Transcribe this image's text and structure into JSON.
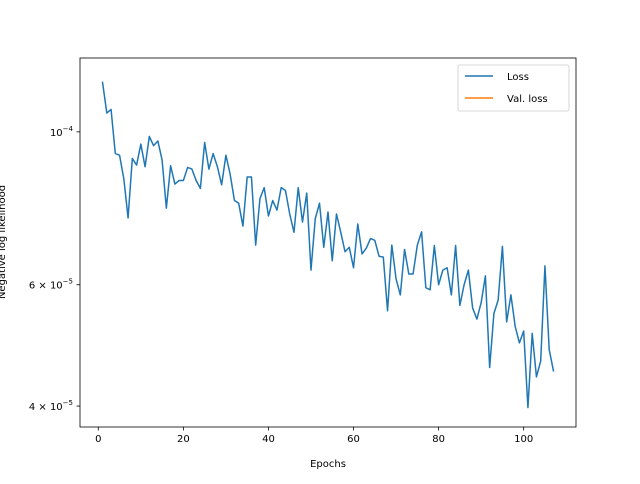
{
  "chart_data": {
    "type": "line",
    "xlabel": "Epochs",
    "ylabel": "Negative log likelihood",
    "yscale": "log",
    "xlim": [
      -4.3,
      112.3
    ],
    "ylim": [
      3.73e-05,
      0.000128
    ],
    "x_ticks": [
      0,
      20,
      40,
      60,
      80,
      100
    ],
    "x_tick_labels": [
      "0",
      "20",
      "40",
      "60",
      "80",
      "100"
    ],
    "y_ticks": [
      4e-05,
      6e-05,
      0.0001
    ],
    "y_tick_labels": [
      {
        "mantissa": "4",
        "times": "×",
        "base": "10",
        "exponent": "−5"
      },
      {
        "mantissa": "6",
        "times": "×",
        "base": "10",
        "exponent": "−5"
      },
      {
        "mantissa": "",
        "times": "",
        "base": "10",
        "exponent": "−4"
      }
    ],
    "legend": {
      "position": "upper right"
    },
    "grid": false,
    "series": [
      {
        "name": "Loss",
        "color": "#1f77b4",
        "x": [
          1,
          2,
          3,
          4,
          5,
          6,
          7,
          8,
          9,
          10,
          11,
          12,
          13,
          14,
          15,
          16,
          17,
          18,
          19,
          20,
          21,
          22,
          23,
          24,
          25,
          26,
          27,
          28,
          29,
          30,
          31,
          32,
          33,
          34,
          35,
          36,
          37,
          38,
          39,
          40,
          41,
          42,
          43,
          44,
          45,
          46,
          47,
          48,
          49,
          50,
          51,
          52,
          53,
          54,
          55,
          56,
          57,
          58,
          59,
          60,
          61,
          62,
          63,
          64,
          65,
          66,
          67,
          68,
          69,
          70,
          71,
          72,
          73,
          74,
          75,
          76,
          77,
          78,
          79,
          80,
          81,
          82,
          83,
          84,
          85,
          86,
          87,
          88,
          89,
          90,
          91,
          92,
          93,
          94,
          95,
          96,
          97,
          98,
          99,
          100,
          101,
          102,
          103,
          104,
          105,
          106,
          107
        ],
        "values": [
          0.000118,
          0.0001065,
          0.0001078,
          9.3e-05,
          9.25e-05,
          8.55e-05,
          7.5e-05,
          9.15e-05,
          8.95e-05,
          9.6e-05,
          8.9e-05,
          9.85e-05,
          9.55e-05,
          9.7e-05,
          9.1e-05,
          7.75e-05,
          8.93e-05,
          8.4e-05,
          8.5e-05,
          8.5e-05,
          8.88e-05,
          8.83e-05,
          8.5e-05,
          8.28e-05,
          9.65e-05,
          8.83e-05,
          9.3e-05,
          8.9e-05,
          8.38e-05,
          9.25e-05,
          8.68e-05,
          7.95e-05,
          7.88e-05,
          7.3e-05,
          8.6e-05,
          8.6e-05,
          6.85e-05,
          8e-05,
          8.3e-05,
          7.55e-05,
          7.95e-05,
          7.7e-05,
          8.3e-05,
          8.22e-05,
          7.6e-05,
          7.15e-05,
          8.3e-05,
          7.4e-05,
          8.15e-05,
          6.3e-05,
          7.48e-05,
          7.88e-05,
          6.8e-05,
          7.65e-05,
          6.5e-05,
          7.6e-05,
          7.15e-05,
          6.7e-05,
          6.8e-05,
          6.35e-05,
          7.35e-05,
          6.65e-05,
          6.78e-05,
          7e-05,
          6.96e-05,
          6.6e-05,
          6.58e-05,
          5.5e-05,
          6.85e-05,
          6.12e-05,
          5.8e-05,
          6.75e-05,
          6.22e-05,
          6.22e-05,
          6.85e-05,
          7.16e-05,
          5.94e-05,
          5.9e-05,
          6.84e-05,
          6e-05,
          6.3e-05,
          6.35e-05,
          5.8e-05,
          6.84e-05,
          5.6e-05,
          6e-05,
          6.3e-05,
          5.55e-05,
          5.35e-05,
          5.65e-05,
          6.18e-05,
          4.55e-05,
          5.45e-05,
          5.7e-05,
          6.82e-05,
          5.3e-05,
          5.8e-05,
          5.22e-05,
          4.94e-05,
          5.14e-05,
          3.98e-05,
          5.1e-05,
          4.41e-05,
          4.65e-05,
          6.39e-05,
          4.83e-05,
          4.5e-05
        ]
      },
      {
        "name": "Val. loss",
        "color": "#ff7f0e",
        "x": [],
        "values": []
      }
    ]
  }
}
